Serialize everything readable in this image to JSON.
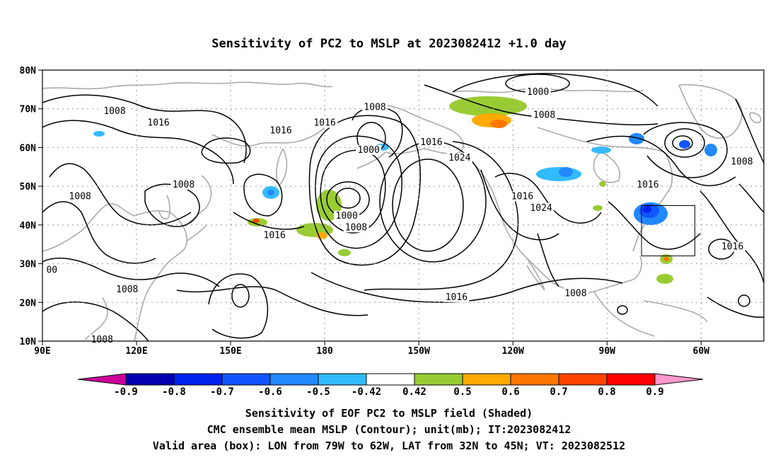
{
  "title": "Sensitivity of PC2 to MSLP at 2023082412 +1.0 day",
  "axes": {
    "lat_labels": [
      "80N",
      "70N",
      "60N",
      "50N",
      "40N",
      "30N",
      "20N",
      "10N"
    ],
    "lat_values": [
      80,
      70,
      60,
      50,
      40,
      30,
      20,
      10
    ],
    "lon_labels": [
      "90E",
      "120E",
      "150E",
      "180",
      "150W",
      "120W",
      "90W",
      "60W"
    ],
    "lon_values": [
      90,
      120,
      150,
      180,
      210,
      240,
      270,
      300
    ],
    "lon_range": [
      90,
      320
    ],
    "lat_range": [
      10,
      80
    ],
    "grid": "dotted"
  },
  "contour_labels": [
    {
      "text": "1008",
      "lon": 113,
      "lat": 69
    },
    {
      "text": "1016",
      "lon": 127,
      "lat": 66
    },
    {
      "text": "1016",
      "lon": 166,
      "lat": 64
    },
    {
      "text": "1016",
      "lon": 180,
      "lat": 66
    },
    {
      "text": "1008",
      "lon": 196,
      "lat": 70
    },
    {
      "text": "1000",
      "lon": 248,
      "lat": 74
    },
    {
      "text": "1008",
      "lon": 250,
      "lat": 68
    },
    {
      "text": "1000",
      "lon": 194,
      "lat": 59
    },
    {
      "text": "1016",
      "lon": 214,
      "lat": 61
    },
    {
      "text": "1024",
      "lon": 223,
      "lat": 57
    },
    {
      "text": "1008",
      "lon": 135,
      "lat": 50
    },
    {
      "text": "1008",
      "lon": 102,
      "lat": 47
    },
    {
      "text": "1016",
      "lon": 283,
      "lat": 50
    },
    {
      "text": "1016",
      "lon": 243,
      "lat": 47
    },
    {
      "text": "1024",
      "lon": 249,
      "lat": 44
    },
    {
      "text": "1008",
      "lon": 313,
      "lat": 56
    },
    {
      "text": "1000",
      "lon": 187,
      "lat": 42
    },
    {
      "text": "1008",
      "lon": 190,
      "lat": 39
    },
    {
      "text": "1016",
      "lon": 164,
      "lat": 37
    },
    {
      "text": "1016",
      "lon": 310,
      "lat": 34
    },
    {
      "text": "00",
      "lon": 93,
      "lat": 28
    },
    {
      "text": "1008",
      "lon": 117,
      "lat": 23
    },
    {
      "text": "1016",
      "lon": 222,
      "lat": 21
    },
    {
      "text": "1008",
      "lon": 260,
      "lat": 22
    },
    {
      "text": "1008",
      "lon": 109,
      "lat": 10
    }
  ],
  "colorbar": {
    "labels": [
      "-0.9",
      "-0.8",
      "-0.7",
      "-0.6",
      "-0.5",
      "-0.42",
      "0.42",
      "0.5",
      "0.6",
      "0.7",
      "0.8",
      "0.9"
    ],
    "colors": [
      "#0000b0",
      "#0022ee",
      "#1155ff",
      "#2288ff",
      "#33bbff",
      "#ffffff",
      "#99cc33",
      "#ffaa00",
      "#ff7700",
      "#ff4400",
      "#ff0000"
    ],
    "low_end_color": "#cc0099",
    "high_end_color": "#ff99cc"
  },
  "valid_box": {
    "lon_min": 281,
    "lon_max": 298,
    "lat_min": 32,
    "lat_max": 45
  },
  "footer": {
    "line1": "Sensitivity of EOF PC2 to MSLP field (Shaded)",
    "line2": "CMC ensemble mean MSLP (Contour); unit(mb); IT:2023082412",
    "line3": "Valid area (box): LON from 79W to 62W, LAT from 32N to 45N; VT: 2023082512"
  },
  "colors": {
    "contour": "#000000",
    "coastline": "#aaaaaa",
    "grid": "#999999"
  }
}
